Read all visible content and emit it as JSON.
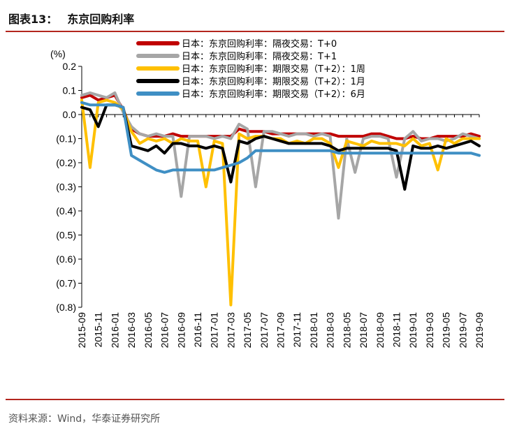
{
  "header": {
    "figure_number": "图表13：",
    "title": "东京回购利率"
  },
  "footer": {
    "source": "资料来源：Wind，华泰证券研究所"
  },
  "chart_data": {
    "type": "line",
    "unit_label": "(%)",
    "ylim": [
      -0.8,
      0.2
    ],
    "yticks": [
      0.2,
      0.1,
      0.0,
      -0.1,
      -0.2,
      -0.3,
      -0.4,
      -0.5,
      -0.6,
      -0.7,
      -0.8
    ],
    "ytick_labels": [
      "0.2",
      "0.1",
      "0.0",
      "(0.1)",
      "(0.2)",
      "(0.3)",
      "(0.4)",
      "(0.5)",
      "(0.6)",
      "(0.7)",
      "(0.8)"
    ],
    "xlim": [
      "2015-09",
      "2019-09"
    ],
    "xtick_labels": [
      "2015-09",
      "2015-11",
      "2016-01",
      "2016-03",
      "2016-05",
      "2016-07",
      "2016-09",
      "2016-11",
      "2017-01",
      "2017-03",
      "2017-05",
      "2017-07",
      "2017-09",
      "2017-11",
      "2018-01",
      "2018-03",
      "2018-05",
      "2018-07",
      "2018-09",
      "2018-11",
      "2019-01",
      "2019-03",
      "2019-05",
      "2019-07",
      "2019-09"
    ],
    "grid": false,
    "legend_position": "top",
    "series": [
      {
        "name": "日本：东京回购利率：隔夜交易：T+0",
        "color": "#c00000",
        "x": [
          "2015-09",
          "2015-10",
          "2015-11",
          "2015-12",
          "2016-01",
          "2016-02",
          "2016-03",
          "2016-04",
          "2016-05",
          "2016-06",
          "2016-07",
          "2016-08",
          "2016-09",
          "2016-10",
          "2016-11",
          "2016-12",
          "2017-01",
          "2017-02",
          "2017-03",
          "2017-04",
          "2017-05",
          "2017-06",
          "2017-07",
          "2017-08",
          "2017-09",
          "2017-10",
          "2017-11",
          "2017-12",
          "2018-01",
          "2018-02",
          "2018-03",
          "2018-04",
          "2018-05",
          "2018-06",
          "2018-07",
          "2018-08",
          "2018-09",
          "2018-10",
          "2018-11",
          "2018-12",
          "2019-01",
          "2019-02",
          "2019-03",
          "2019-04",
          "2019-05",
          "2019-06",
          "2019-07",
          "2019-08",
          "2019-09"
        ],
        "values": [
          0.07,
          0.08,
          0.06,
          0.07,
          0.08,
          0.02,
          -0.06,
          -0.08,
          -0.09,
          -0.09,
          -0.09,
          -0.08,
          -0.09,
          -0.09,
          -0.09,
          -0.09,
          -0.09,
          -0.09,
          -0.09,
          -0.06,
          -0.07,
          -0.07,
          -0.07,
          -0.08,
          -0.08,
          -0.08,
          -0.08,
          -0.08,
          -0.08,
          -0.08,
          -0.08,
          -0.09,
          -0.09,
          -0.09,
          -0.09,
          -0.08,
          -0.08,
          -0.09,
          -0.1,
          -0.1,
          -0.09,
          -0.1,
          -0.1,
          -0.09,
          -0.09,
          -0.09,
          -0.09,
          -0.08,
          -0.09
        ]
      },
      {
        "name": "日本：东京回购利率：隔夜交易：T+1",
        "color": "#a6a6a6",
        "x": [
          "2015-09",
          "2015-10",
          "2015-11",
          "2015-12",
          "2016-01",
          "2016-02",
          "2016-03",
          "2016-04",
          "2016-05",
          "2016-06",
          "2016-07",
          "2016-08",
          "2016-09",
          "2016-10",
          "2016-11",
          "2016-12",
          "2017-01",
          "2017-02",
          "2017-03",
          "2017-04",
          "2017-05",
          "2017-06",
          "2017-07",
          "2017-08",
          "2017-09",
          "2017-10",
          "2017-11",
          "2017-12",
          "2018-01",
          "2018-02",
          "2018-03",
          "2018-04",
          "2018-05",
          "2018-06",
          "2018-07",
          "2018-08",
          "2018-09",
          "2018-10",
          "2018-11",
          "2018-12",
          "2019-01",
          "2019-02",
          "2019-03",
          "2019-04",
          "2019-05",
          "2019-06",
          "2019-07",
          "2019-08",
          "2019-09"
        ],
        "values": [
          0.08,
          0.09,
          0.08,
          0.07,
          0.09,
          0.01,
          -0.05,
          -0.08,
          -0.09,
          -0.08,
          -0.09,
          -0.09,
          -0.34,
          -0.09,
          -0.09,
          -0.09,
          -0.1,
          -0.09,
          -0.1,
          -0.04,
          -0.06,
          -0.3,
          -0.07,
          -0.07,
          -0.08,
          -0.09,
          -0.08,
          -0.08,
          -0.09,
          -0.08,
          -0.09,
          -0.43,
          -0.1,
          -0.24,
          -0.1,
          -0.09,
          -0.09,
          -0.1,
          -0.26,
          -0.1,
          -0.07,
          -0.11,
          -0.1,
          -0.1,
          -0.11,
          -0.1,
          -0.08,
          -0.09,
          -0.1
        ]
      },
      {
        "name": "日本：东京回购利率：期限交易（T+2）：1周",
        "color": "#ffc000",
        "x": [
          "2015-09",
          "2015-10",
          "2015-11",
          "2015-12",
          "2016-01",
          "2016-02",
          "2016-03",
          "2016-04",
          "2016-05",
          "2016-06",
          "2016-07",
          "2016-08",
          "2016-09",
          "2016-10",
          "2016-11",
          "2016-12",
          "2017-01",
          "2017-02",
          "2017-03",
          "2017-04",
          "2017-05",
          "2017-06",
          "2017-07",
          "2017-08",
          "2017-09",
          "2017-10",
          "2017-11",
          "2017-12",
          "2018-01",
          "2018-02",
          "2018-03",
          "2018-04",
          "2018-05",
          "2018-06",
          "2018-07",
          "2018-08",
          "2018-09",
          "2018-10",
          "2018-11",
          "2018-12",
          "2019-01",
          "2019-02",
          "2019-03",
          "2019-04",
          "2019-05",
          "2019-06",
          "2019-07",
          "2019-08",
          "2019-09"
        ],
        "values": [
          0.06,
          -0.22,
          0.05,
          0.06,
          0.05,
          0.02,
          -0.07,
          -0.12,
          -0.1,
          -0.11,
          -0.1,
          -0.12,
          -0.1,
          -0.11,
          -0.11,
          -0.3,
          -0.11,
          -0.12,
          -0.79,
          -0.08,
          -0.1,
          -0.09,
          -0.09,
          -0.1,
          -0.1,
          -0.12,
          -0.11,
          -0.12,
          -0.1,
          -0.1,
          -0.12,
          -0.22,
          -0.11,
          -0.12,
          -0.13,
          -0.11,
          -0.12,
          -0.12,
          -0.12,
          -0.13,
          -0.1,
          -0.13,
          -0.12,
          -0.23,
          -0.1,
          -0.12,
          -0.1,
          -0.1,
          -0.1
        ]
      },
      {
        "name": "日本：东京回购利率：期限交易（T+2）：1月",
        "color": "#000000",
        "x": [
          "2015-09",
          "2015-10",
          "2015-11",
          "2015-12",
          "2016-01",
          "2016-02",
          "2016-03",
          "2016-04",
          "2016-05",
          "2016-06",
          "2016-07",
          "2016-08",
          "2016-09",
          "2016-10",
          "2016-11",
          "2016-12",
          "2017-01",
          "2017-02",
          "2017-03",
          "2017-04",
          "2017-05",
          "2017-06",
          "2017-07",
          "2017-08",
          "2017-09",
          "2017-10",
          "2017-11",
          "2017-12",
          "2018-01",
          "2018-02",
          "2018-03",
          "2018-04",
          "2018-05",
          "2018-06",
          "2018-07",
          "2018-08",
          "2018-09",
          "2018-10",
          "2018-11",
          "2018-12",
          "2019-01",
          "2019-02",
          "2019-03",
          "2019-04",
          "2019-05",
          "2019-06",
          "2019-07",
          "2019-08",
          "2019-09"
        ],
        "values": [
          0.03,
          0.02,
          -0.05,
          0.04,
          0.04,
          0.03,
          -0.13,
          -0.14,
          -0.15,
          -0.13,
          -0.16,
          -0.12,
          -0.12,
          -0.13,
          -0.13,
          -0.14,
          -0.13,
          -0.14,
          -0.28,
          -0.11,
          -0.12,
          -0.1,
          -0.09,
          -0.1,
          -0.11,
          -0.12,
          -0.12,
          -0.12,
          -0.12,
          -0.12,
          -0.13,
          -0.15,
          -0.14,
          -0.14,
          -0.14,
          -0.14,
          -0.14,
          -0.14,
          -0.15,
          -0.31,
          -0.13,
          -0.14,
          -0.14,
          -0.13,
          -0.14,
          -0.13,
          -0.12,
          -0.11,
          -0.13
        ]
      },
      {
        "name": "日本：东京回购利率：期限交易（T+2）：6月",
        "color": "#3f8fc4",
        "x": [
          "2015-09",
          "2015-10",
          "2015-11",
          "2015-12",
          "2016-01",
          "2016-02",
          "2016-03",
          "2016-04",
          "2016-05",
          "2016-06",
          "2016-07",
          "2016-08",
          "2016-09",
          "2016-10",
          "2016-11",
          "2016-12",
          "2017-01",
          "2017-02",
          "2017-03",
          "2017-04",
          "2017-05",
          "2017-06",
          "2017-07",
          "2017-08",
          "2017-09",
          "2017-10",
          "2017-11",
          "2017-12",
          "2018-01",
          "2018-02",
          "2018-03",
          "2018-04",
          "2018-05",
          "2018-06",
          "2018-07",
          "2018-08",
          "2018-09",
          "2018-10",
          "2018-11",
          "2018-12",
          "2019-01",
          "2019-02",
          "2019-03",
          "2019-04",
          "2019-05",
          "2019-06",
          "2019-07",
          "2019-08",
          "2019-09"
        ],
        "values": [
          0.05,
          0.04,
          0.04,
          0.04,
          0.04,
          0.03,
          -0.17,
          -0.19,
          -0.21,
          -0.23,
          -0.24,
          -0.23,
          -0.23,
          -0.23,
          -0.23,
          -0.23,
          -0.23,
          -0.22,
          -0.21,
          -0.2,
          -0.18,
          -0.15,
          -0.15,
          -0.15,
          -0.15,
          -0.15,
          -0.15,
          -0.15,
          -0.15,
          -0.15,
          -0.15,
          -0.16,
          -0.16,
          -0.16,
          -0.16,
          -0.16,
          -0.16,
          -0.16,
          -0.16,
          -0.16,
          -0.16,
          -0.16,
          -0.16,
          -0.16,
          -0.16,
          -0.16,
          -0.16,
          -0.16,
          -0.17
        ]
      }
    ]
  }
}
